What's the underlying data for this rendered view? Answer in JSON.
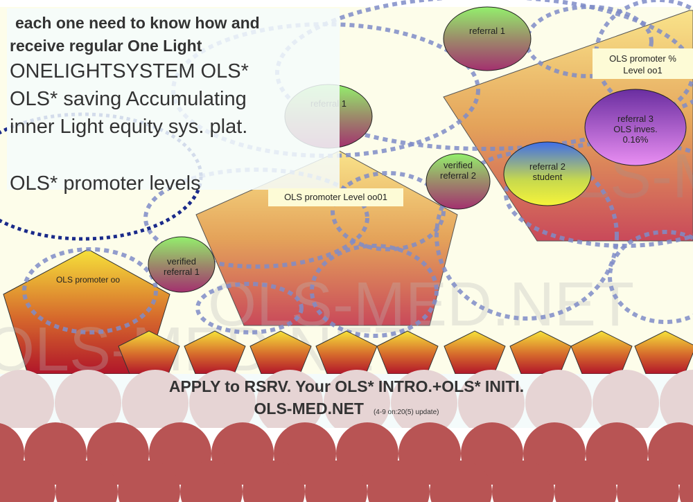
{
  "intro": {
    "line1": "each one need to know how and",
    "line2": "receive regular One Light",
    "line3": "ONELIGHTSYSTEM OLS*",
    "line4": "OLS* saving Accumulating",
    "line5": "inner Light equity sys. plat.",
    "line6": "OLS* promoter levels"
  },
  "nodes": {
    "referral_1_top": "referral 1",
    "referral_1_center": "referral 1",
    "verified_referral_2": [
      "verified",
      "referral 2"
    ],
    "verified_referral_1": [
      "verified",
      "referral 1"
    ],
    "referral_2_student": [
      "referral 2",
      "student"
    ],
    "referral_3": [
      "referral 3",
      "OLS inves.",
      "0.16%"
    ]
  },
  "labels": {
    "promoter_oo": "OLS promoter oo",
    "promoter_level_oo01": "OLS promoter Level oo01",
    "promoter_pct_line1": "OLS promoter %",
    "promoter_pct_line2": "Level oo1"
  },
  "watermark": "OLS-MED.NET",
  "footer": {
    "line1": "APPLY to RSRV. Your OLS* INTRO.+OLS* INITI.",
    "line2": "OLS-MED.NET",
    "update_note": "(4-9 on:20(5) update)"
  },
  "colors": {
    "background": "#fdfdea",
    "dashed_ring": "#7f8cc8",
    "dark_ring": "#1a2a8a",
    "pink_circles": "#e6d4d4",
    "red_circles": "#b85454"
  }
}
